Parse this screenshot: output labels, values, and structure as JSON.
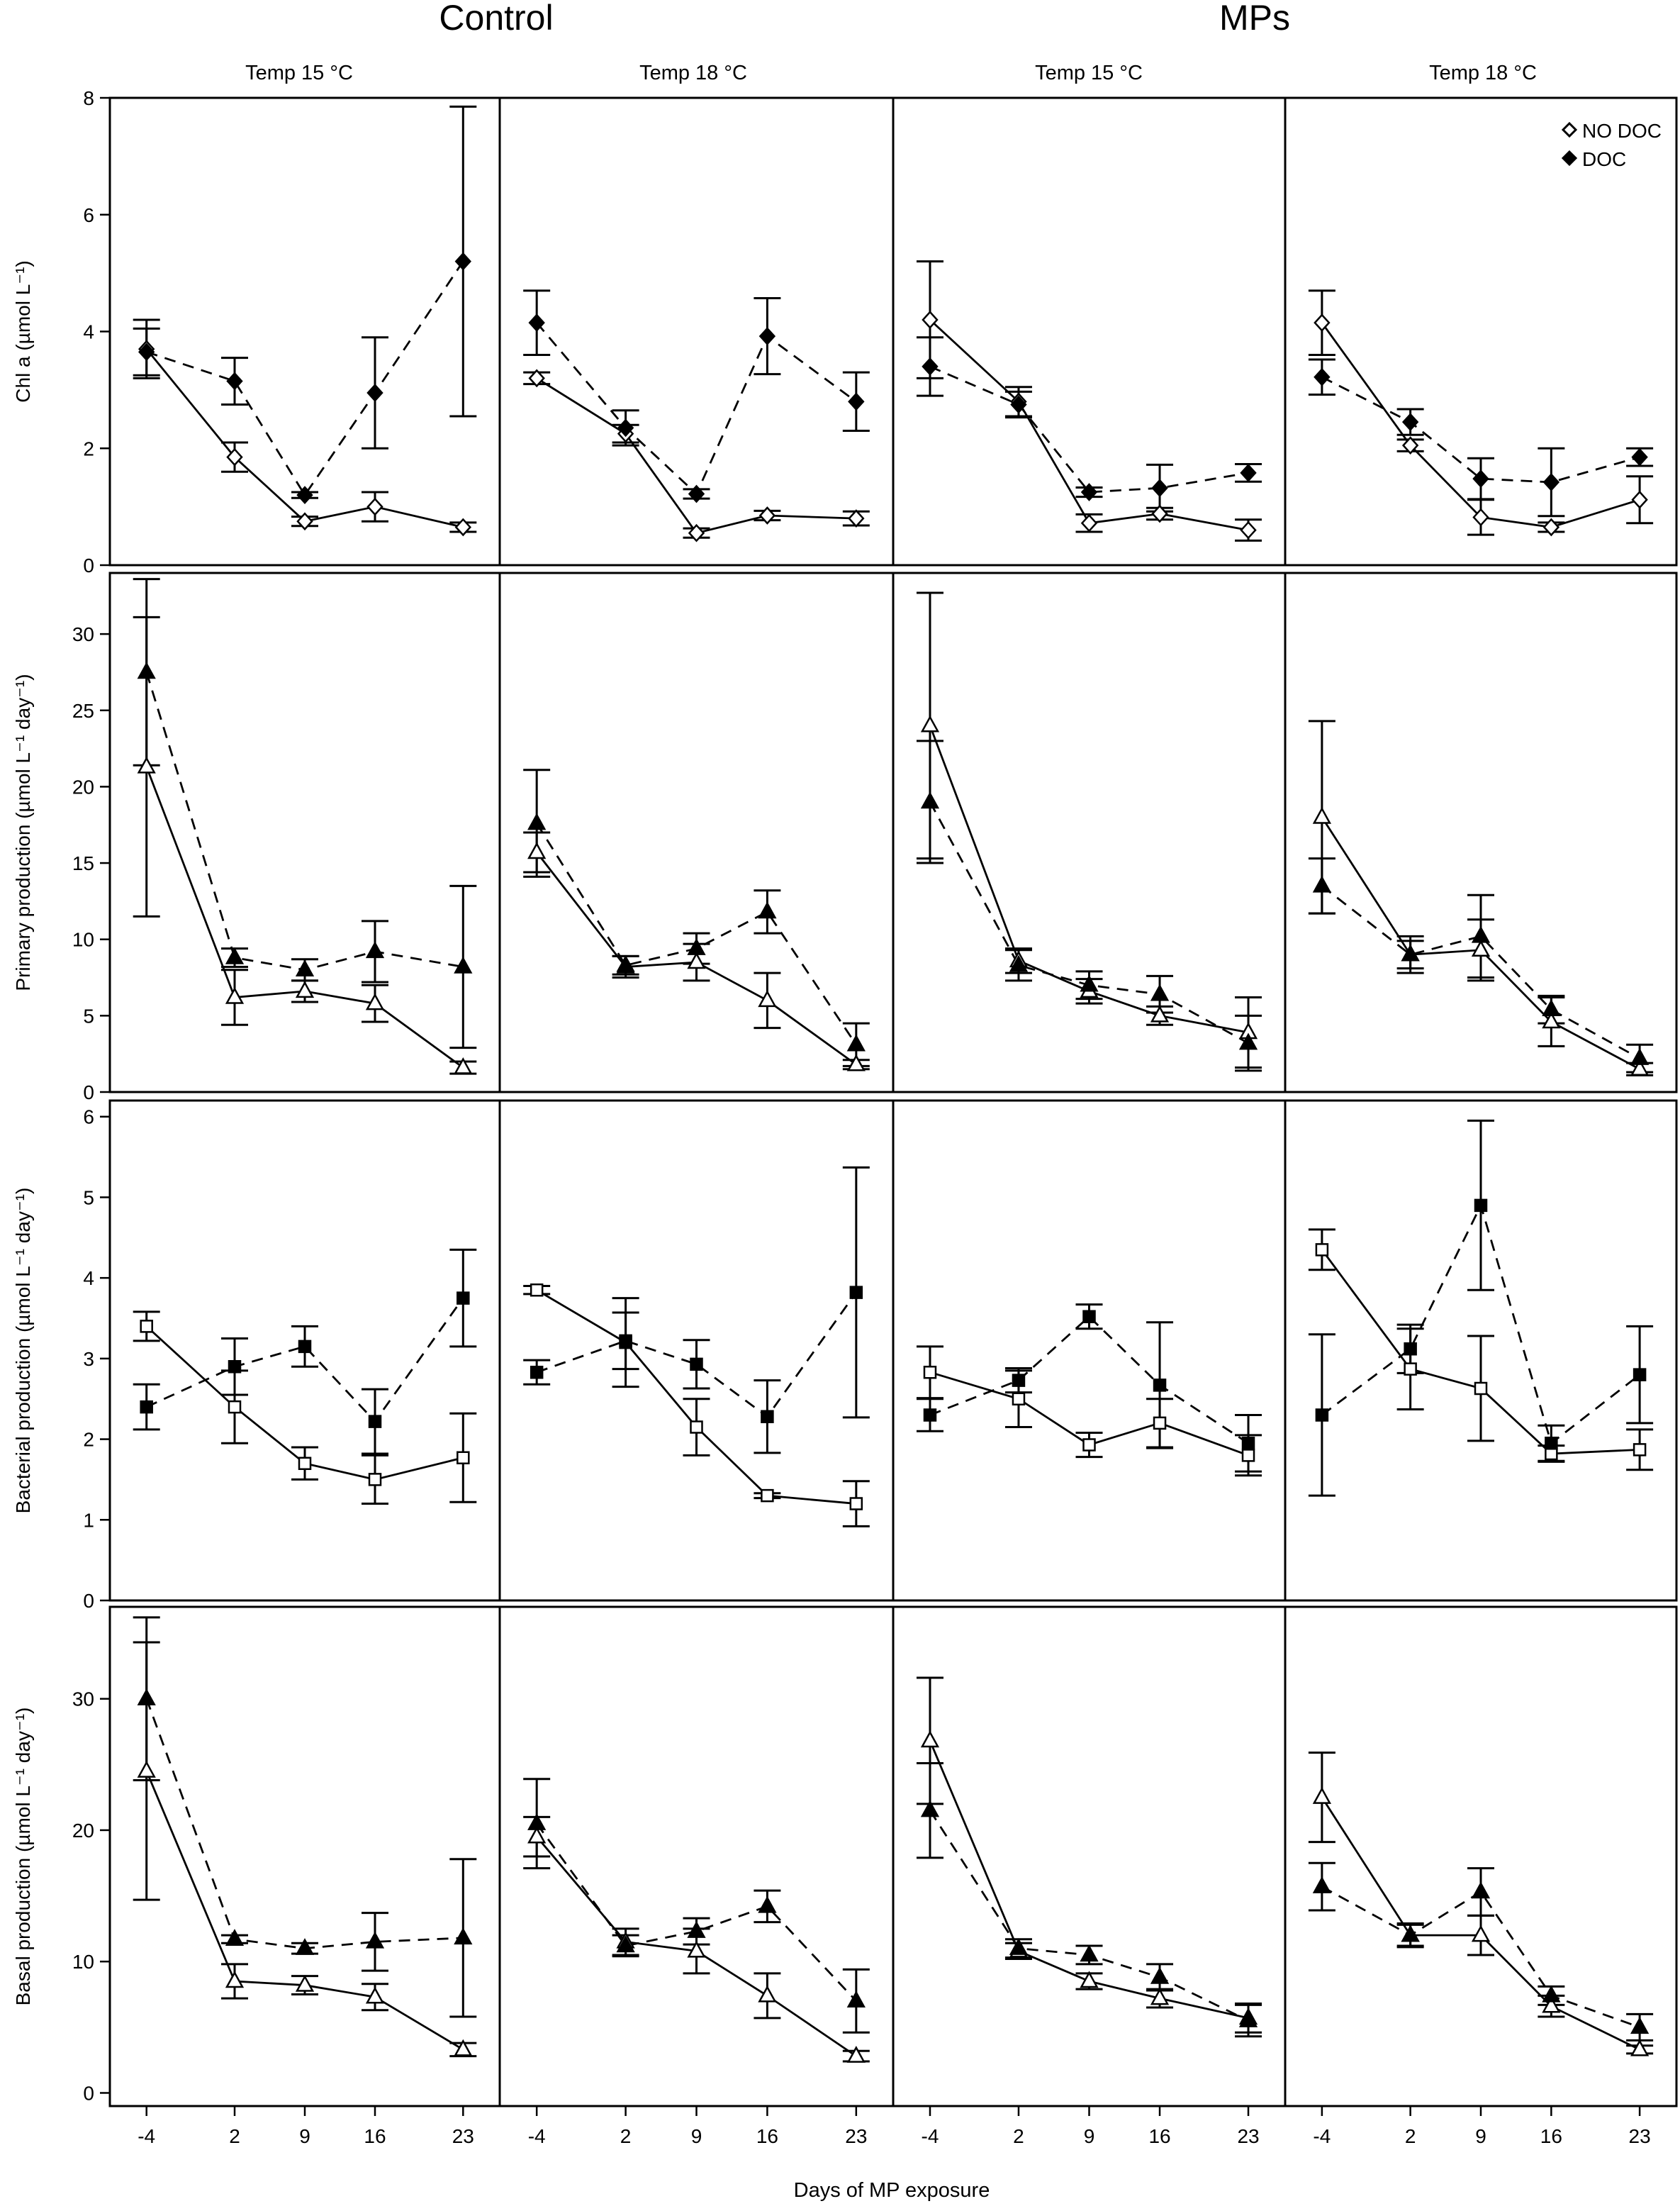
{
  "figure": {
    "group_titles": [
      "Control",
      "MPs"
    ],
    "panel_titles": [
      "Temp 15 °C",
      "Temp 18 °C",
      "Temp 15 °C",
      "Temp 18 °C"
    ],
    "xlabel": "Days of MP exposure",
    "legend": [
      "NO DOC",
      "DOC"
    ]
  },
  "chart_data": [
    {
      "type": "line",
      "ylabel": "Chl a (µmol L⁻¹)",
      "ylim": [
        0,
        8
      ],
      "yticks": [
        0,
        2,
        4,
        6,
        8
      ],
      "marker": "diamond",
      "x": [
        "-4",
        "2",
        "9",
        "16",
        "23"
      ],
      "legend": "top-right",
      "panels": [
        {
          "title": "Temp 15 °C",
          "series": [
            {
              "name": "NO DOC",
              "filled": false,
              "dashed": false,
              "values": [
                3.7,
                1.85,
                0.75,
                1.0,
                0.65
              ],
              "err": [
                0.5,
                0.25,
                0.08,
                0.25,
                0.08
              ]
            },
            {
              "name": "DOC",
              "filled": true,
              "dashed": true,
              "values": [
                3.65,
                3.15,
                1.2,
                2.95,
                5.2
              ],
              "err": [
                0.4,
                0.4,
                0.05,
                0.95,
                2.65
              ]
            }
          ]
        },
        {
          "title": "Temp 18 °C",
          "series": [
            {
              "name": "NO DOC",
              "filled": false,
              "dashed": false,
              "values": [
                3.2,
                2.25,
                0.55,
                0.85,
                0.8
              ],
              "err": [
                0.1,
                0.15,
                0.08,
                0.08,
                0.12
              ]
            },
            {
              "name": "DOC",
              "filled": true,
              "dashed": true,
              "values": [
                4.15,
                2.35,
                1.22,
                3.92,
                2.8
              ],
              "err": [
                0.55,
                0.3,
                0.08,
                0.65,
                0.5
              ]
            }
          ]
        },
        {
          "title": "Temp 15 °C",
          "series": [
            {
              "name": "NO DOC",
              "filled": false,
              "dashed": false,
              "values": [
                4.2,
                2.8,
                0.72,
                0.88,
                0.6
              ],
              "err": [
                1.0,
                0.25,
                0.15,
                0.1,
                0.18
              ]
            },
            {
              "name": "DOC",
              "filled": true,
              "dashed": true,
              "values": [
                3.4,
                2.75,
                1.25,
                1.32,
                1.58
              ],
              "err": [
                0.5,
                0.22,
                0.08,
                0.4,
                0.15
              ]
            }
          ]
        },
        {
          "title": "Temp 18 °C",
          "series": [
            {
              "name": "NO DOC",
              "filled": false,
              "dashed": false,
              "values": [
                4.15,
                2.05,
                0.82,
                0.65,
                1.12
              ],
              "err": [
                0.55,
                0.1,
                0.3,
                0.08,
                0.4
              ]
            },
            {
              "name": "DOC",
              "filled": true,
              "dashed": true,
              "values": [
                3.22,
                2.45,
                1.48,
                1.42,
                1.85
              ],
              "err": [
                0.3,
                0.22,
                0.35,
                0.58,
                0.15
              ]
            }
          ]
        }
      ]
    },
    {
      "type": "line",
      "ylabel": "Primary production (µmol L⁻¹ day⁻¹)",
      "ylim": [
        0,
        34
      ],
      "yticks": [
        0,
        5,
        10,
        15,
        20,
        25,
        30
      ],
      "marker": "triangle",
      "x": [
        "-4",
        "2",
        "9",
        "16",
        "23"
      ],
      "panels": [
        {
          "title": "Temp 15 °C",
          "series": [
            {
              "filled": false,
              "dashed": false,
              "values": [
                21.3,
                6.2,
                6.6,
                5.8,
                1.6
              ],
              "err": [
                9.8,
                1.8,
                0.7,
                1.2,
                0.4
              ]
            },
            {
              "filled": true,
              "dashed": true,
              "values": [
                27.5,
                8.8,
                8.0,
                9.2,
                8.2
              ],
              "err": [
                6.1,
                0.6,
                0.7,
                2.0,
                5.3
              ]
            }
          ]
        },
        {
          "title": "Temp 18 °C",
          "series": [
            {
              "filled": false,
              "dashed": false,
              "values": [
                15.7,
                8.2,
                8.5,
                6.0,
                1.8
              ],
              "err": [
                1.3,
                0.7,
                1.2,
                1.8,
                0.3
              ]
            },
            {
              "filled": true,
              "dashed": true,
              "values": [
                17.6,
                8.3,
                9.4,
                11.8,
                3.1
              ],
              "err": [
                3.5,
                0.6,
                1.0,
                1.4,
                1.4
              ]
            }
          ]
        },
        {
          "title": "Temp 15 °C",
          "series": [
            {
              "filled": false,
              "dashed": false,
              "values": [
                24.0,
                8.6,
                6.6,
                5.0,
                3.9
              ],
              "err": [
                8.7,
                0.8,
                0.8,
                0.6,
                2.3
              ]
            },
            {
              "filled": true,
              "dashed": true,
              "values": [
                19.0,
                8.3,
                7.0,
                6.4,
                3.2
              ],
              "err": [
                4.0,
                1.0,
                0.9,
                1.2,
                1.8
              ]
            }
          ]
        },
        {
          "title": "Temp 18 °C",
          "series": [
            {
              "filled": false,
              "dashed": false,
              "values": [
                18.0,
                9.0,
                9.3,
                4.6,
                1.5
              ],
              "err": [
                6.3,
                0.9,
                2.0,
                1.6,
                0.4
              ]
            },
            {
              "filled": true,
              "dashed": true,
              "values": [
                13.5,
                9.0,
                10.2,
                5.4,
                2.2
              ],
              "err": [
                1.8,
                1.2,
                2.7,
                0.9,
                0.9
              ]
            }
          ]
        }
      ]
    },
    {
      "type": "line",
      "ylabel": "Bacterial production (µmol L⁻¹ day⁻¹)",
      "ylim": [
        0,
        6.2
      ],
      "yticks": [
        0,
        1,
        2,
        3,
        4,
        5,
        6
      ],
      "marker": "square",
      "x": [
        "-4",
        "2",
        "9",
        "16",
        "23"
      ],
      "panels": [
        {
          "title": "Temp 15 °C",
          "series": [
            {
              "filled": false,
              "dashed": false,
              "values": [
                3.4,
                2.4,
                1.7,
                1.5,
                1.77
              ],
              "err": [
                0.18,
                0.45,
                0.2,
                0.3,
                0.55
              ]
            },
            {
              "filled": true,
              "dashed": true,
              "values": [
                2.4,
                2.9,
                3.15,
                2.22,
                3.75
              ],
              "err": [
                0.28,
                0.35,
                0.25,
                0.4,
                0.6
              ]
            }
          ]
        },
        {
          "title": "Temp 18 °C",
          "series": [
            {
              "filled": false,
              "dashed": false,
              "values": [
                3.85,
                3.2,
                2.15,
                1.3,
                1.2
              ],
              "err": [
                0.05,
                0.55,
                0.35,
                0.03,
                0.28
              ]
            },
            {
              "filled": true,
              "dashed": true,
              "values": [
                2.83,
                3.22,
                2.93,
                2.28,
                3.82
              ],
              "err": [
                0.15,
                0.35,
                0.3,
                0.45,
                1.55
              ]
            }
          ]
        },
        {
          "title": "Temp 15 °C",
          "series": [
            {
              "filled": false,
              "dashed": false,
              "values": [
                2.83,
                2.5,
                1.93,
                2.2,
                1.8
              ],
              "err": [
                0.32,
                0.35,
                0.15,
                0.3,
                0.25
              ]
            },
            {
              "filled": true,
              "dashed": true,
              "values": [
                2.3,
                2.73,
                3.52,
                2.67,
                1.95
              ],
              "err": [
                0.2,
                0.15,
                0.15,
                0.78,
                0.35
              ]
            }
          ]
        },
        {
          "title": "Temp 18 °C",
          "series": [
            {
              "filled": false,
              "dashed": false,
              "values": [
                4.35,
                2.87,
                2.63,
                1.82,
                1.87
              ],
              "err": [
                0.25,
                0.5,
                0.65,
                0.1,
                0.25
              ]
            },
            {
              "filled": true,
              "dashed": true,
              "values": [
                2.3,
                3.12,
                4.9,
                1.95,
                2.8
              ],
              "err": [
                1.0,
                0.3,
                1.05,
                0.22,
                0.6
              ]
            }
          ]
        }
      ]
    },
    {
      "type": "line",
      "ylabel": "Basal production (µmol L⁻¹ day⁻¹)",
      "ylim": [
        -1,
        37
      ],
      "yticks": [
        0,
        10,
        20,
        30
      ],
      "marker": "triangle",
      "x": [
        "-4",
        "2",
        "9",
        "16",
        "23"
      ],
      "panels": [
        {
          "title": "Temp 15 °C",
          "series": [
            {
              "filled": false,
              "dashed": false,
              "values": [
                24.5,
                8.5,
                8.2,
                7.3,
                3.3
              ],
              "err": [
                9.8,
                1.3,
                0.7,
                1.0,
                0.5
              ]
            },
            {
              "filled": true,
              "dashed": true,
              "values": [
                30.0,
                11.7,
                11.0,
                11.5,
                11.8
              ],
              "err": [
                6.2,
                0.3,
                0.4,
                2.2,
                6.0
              ]
            }
          ]
        },
        {
          "title": "Temp 18 °C",
          "series": [
            {
              "filled": false,
              "dashed": false,
              "values": [
                19.5,
                11.5,
                10.8,
                7.4,
                2.8
              ],
              "err": [
                1.5,
                1.0,
                1.7,
                1.7,
                0.4
              ]
            },
            {
              "filled": true,
              "dashed": true,
              "values": [
                20.5,
                11.2,
                12.3,
                14.2,
                7.0
              ],
              "err": [
                3.4,
                0.8,
                1.0,
                1.2,
                2.4
              ]
            }
          ]
        },
        {
          "title": "Temp 15 °C",
          "series": [
            {
              "filled": false,
              "dashed": false,
              "values": [
                26.8,
                10.8,
                8.5,
                7.2,
                5.7
              ],
              "err": [
                4.8,
                0.6,
                0.6,
                0.7,
                1.1
              ]
            },
            {
              "filled": true,
              "dashed": true,
              "values": [
                21.5,
                11.0,
                10.5,
                8.8,
                5.5
              ],
              "err": [
                3.6,
                0.7,
                0.7,
                1.0,
                1.2
              ]
            }
          ]
        },
        {
          "title": "Temp 18 °C",
          "series": [
            {
              "filled": false,
              "dashed": false,
              "values": [
                22.5,
                12.0,
                12.0,
                6.6,
                3.3
              ],
              "err": [
                3.4,
                0.8,
                1.5,
                0.8,
                0.3
              ]
            },
            {
              "filled": true,
              "dashed": true,
              "values": [
                15.7,
                12.0,
                15.3,
                7.4,
                5.0
              ],
              "err": [
                1.8,
                0.9,
                1.8,
                0.7,
                1.0
              ]
            }
          ]
        }
      ]
    }
  ]
}
